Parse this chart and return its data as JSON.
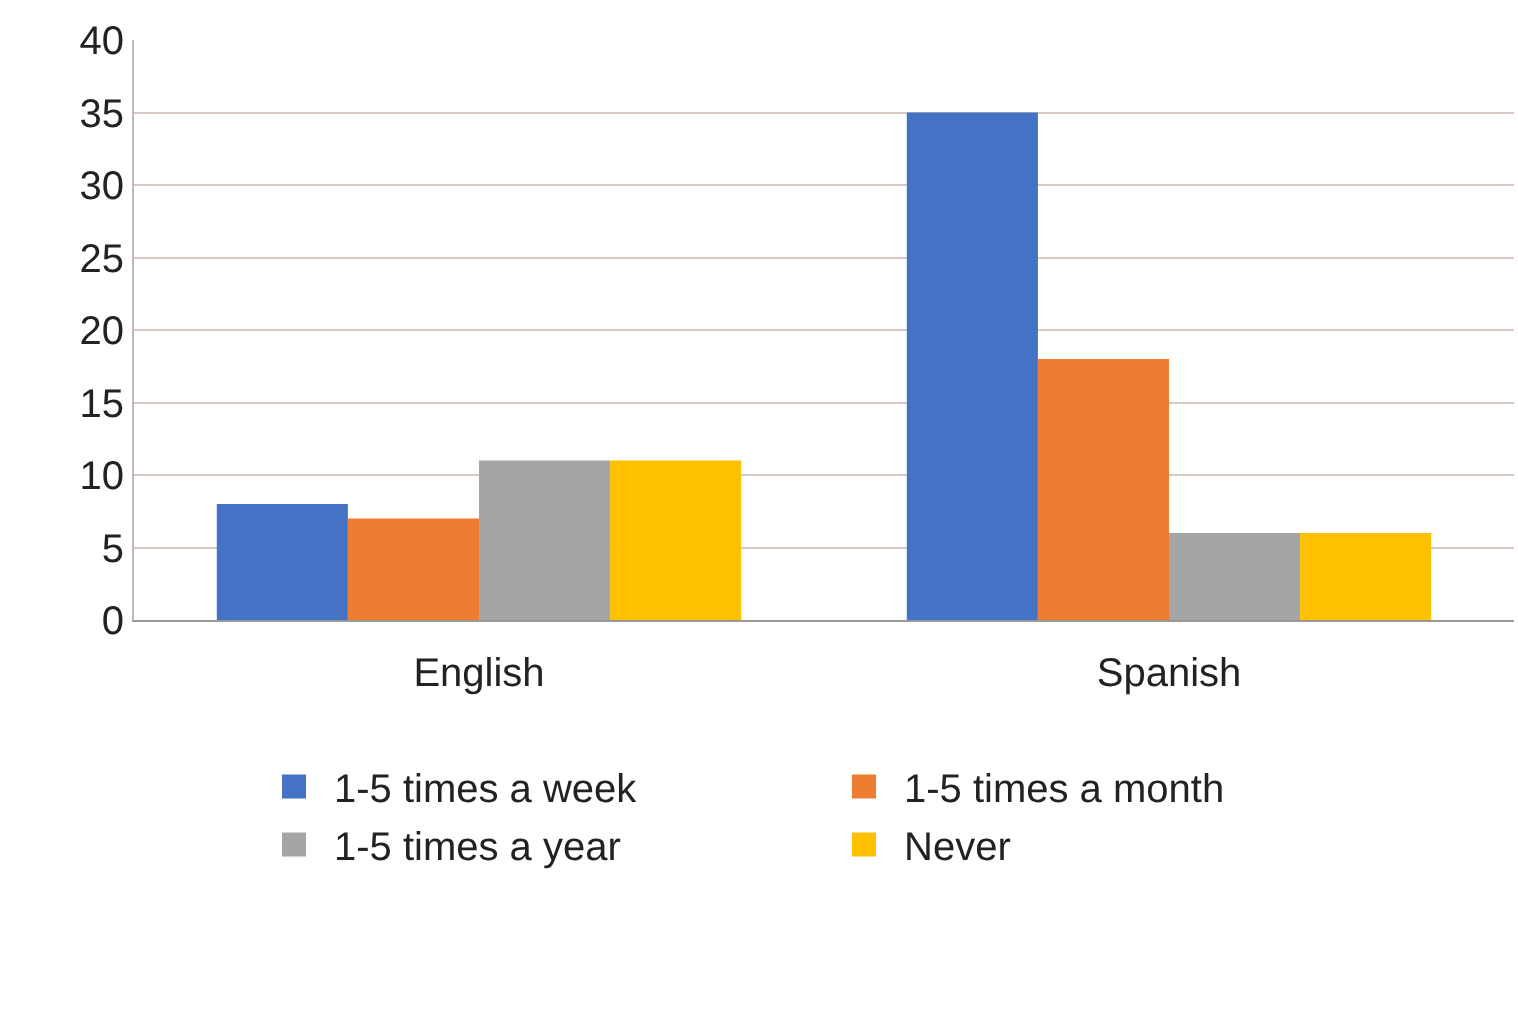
{
  "chart_data": {
    "type": "bar",
    "categories": [
      "English",
      "Spanish"
    ],
    "series": [
      {
        "name": "1-5 times a week",
        "color": "#4472c4",
        "values": [
          8,
          35
        ]
      },
      {
        "name": "1-5 times a month",
        "color": "#ed7d31",
        "values": [
          7,
          18
        ]
      },
      {
        "name": "1-5 times a year",
        "color": "#a5a5a5",
        "values": [
          11,
          6
        ]
      },
      {
        "name": "Never",
        "color": "#ffc000",
        "values": [
          11,
          6
        ]
      }
    ],
    "ylim": [
      0,
      40
    ],
    "yticks": [
      0,
      5,
      10,
      15,
      20,
      25,
      30,
      35,
      40
    ],
    "grid": "y",
    "legend": "bottom"
  }
}
